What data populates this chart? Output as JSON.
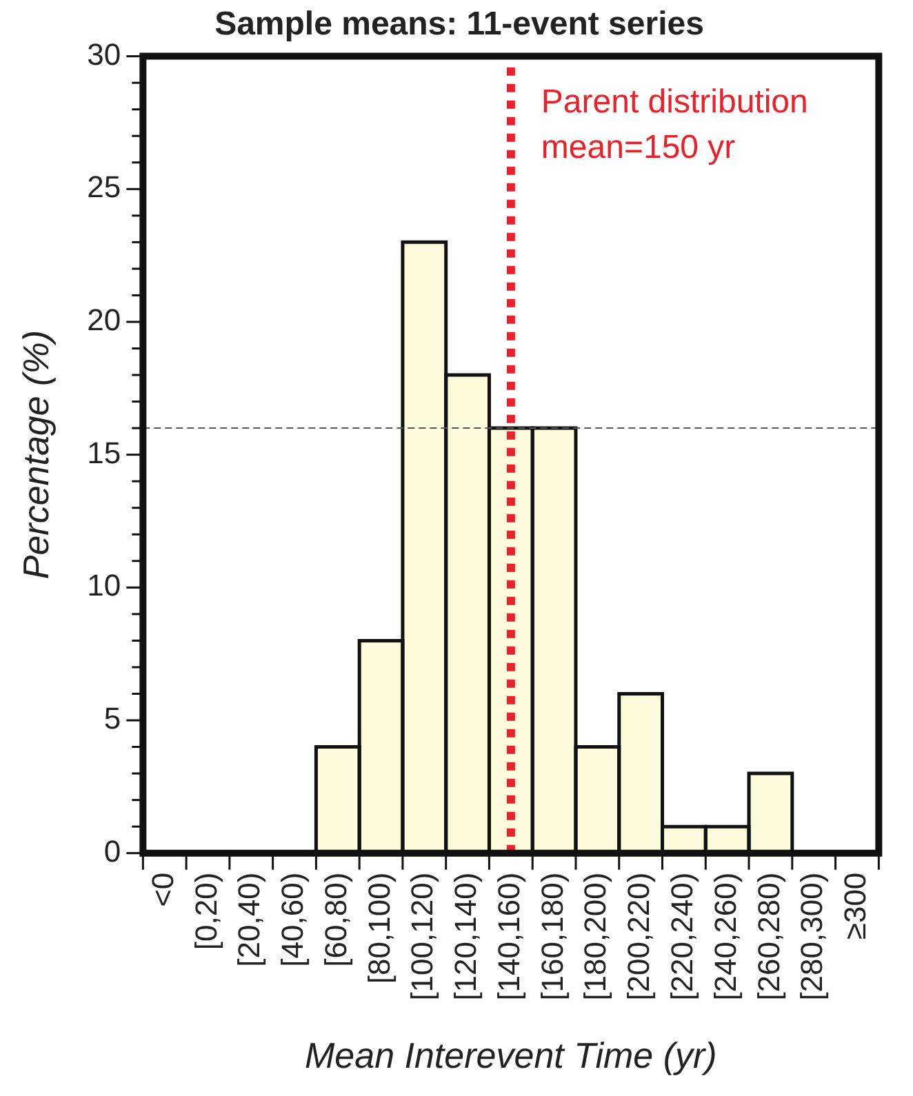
{
  "chart_data": {
    "type": "bar",
    "title": "Sample means: 11-event series",
    "xlabel": "Mean Interevent Time (yr)",
    "ylabel": "Percentage (%)",
    "categories": [
      "<0",
      "[0,20)",
      "[20,40)",
      "[40,60)",
      "[60,80)",
      "[80,100)",
      "[100,120)",
      "[120,140)",
      "[140,160)",
      "[160,180)",
      "[180,200)",
      "[200,220)",
      "[220,240)",
      "[240,260)",
      "[260,280)",
      "[280,300)",
      "≥300"
    ],
    "values": [
      0,
      0,
      0,
      0,
      4,
      8,
      23,
      18,
      16,
      16,
      4,
      6,
      1,
      1,
      3,
      0,
      0
    ],
    "color": "#fdfbdc",
    "ylim": [
      0,
      30
    ],
    "yticks": [
      0,
      {
        "value": 1,
        "label": null
      },
      {
        "value": 2,
        "label": null
      },
      {
        "value": 3,
        "label": null
      },
      {
        "value": 4,
        "label": null
      },
      5,
      {
        "value": 6,
        "label": null
      },
      {
        "value": 7,
        "label": null
      },
      {
        "value": 8,
        "label": null
      },
      {
        "value": 9,
        "label": null
      },
      10,
      {
        "value": 11,
        "label": null
      },
      {
        "value": 12,
        "label": null
      },
      {
        "value": 13,
        "label": null
      },
      {
        "value": 14,
        "label": null
      },
      15,
      {
        "value": 16,
        "label": null
      },
      {
        "value": 17,
        "label": null
      },
      {
        "value": 18,
        "label": null
      },
      {
        "value": 19,
        "label": null
      },
      20,
      {
        "value": 21,
        "label": null
      },
      {
        "value": 22,
        "label": null
      },
      {
        "value": 23,
        "label": null
      },
      {
        "value": 24,
        "label": null
      },
      25,
      {
        "value": 26,
        "label": null
      },
      {
        "value": 27,
        "label": null
      },
      {
        "value": 28,
        "label": null
      },
      {
        "value": 29,
        "label": null
      },
      30
    ],
    "ref_lines": [
      {
        "axis": "x",
        "value": "[140,160)",
        "label": "Parent distribution\nmean=150 yr",
        "color": "#e8222a",
        "line_style": "dotted"
      },
      {
        "axis": "y",
        "value": 16,
        "color": "#555555",
        "line_style": "dashed"
      }
    ],
    "grid": false,
    "legend": false
  }
}
